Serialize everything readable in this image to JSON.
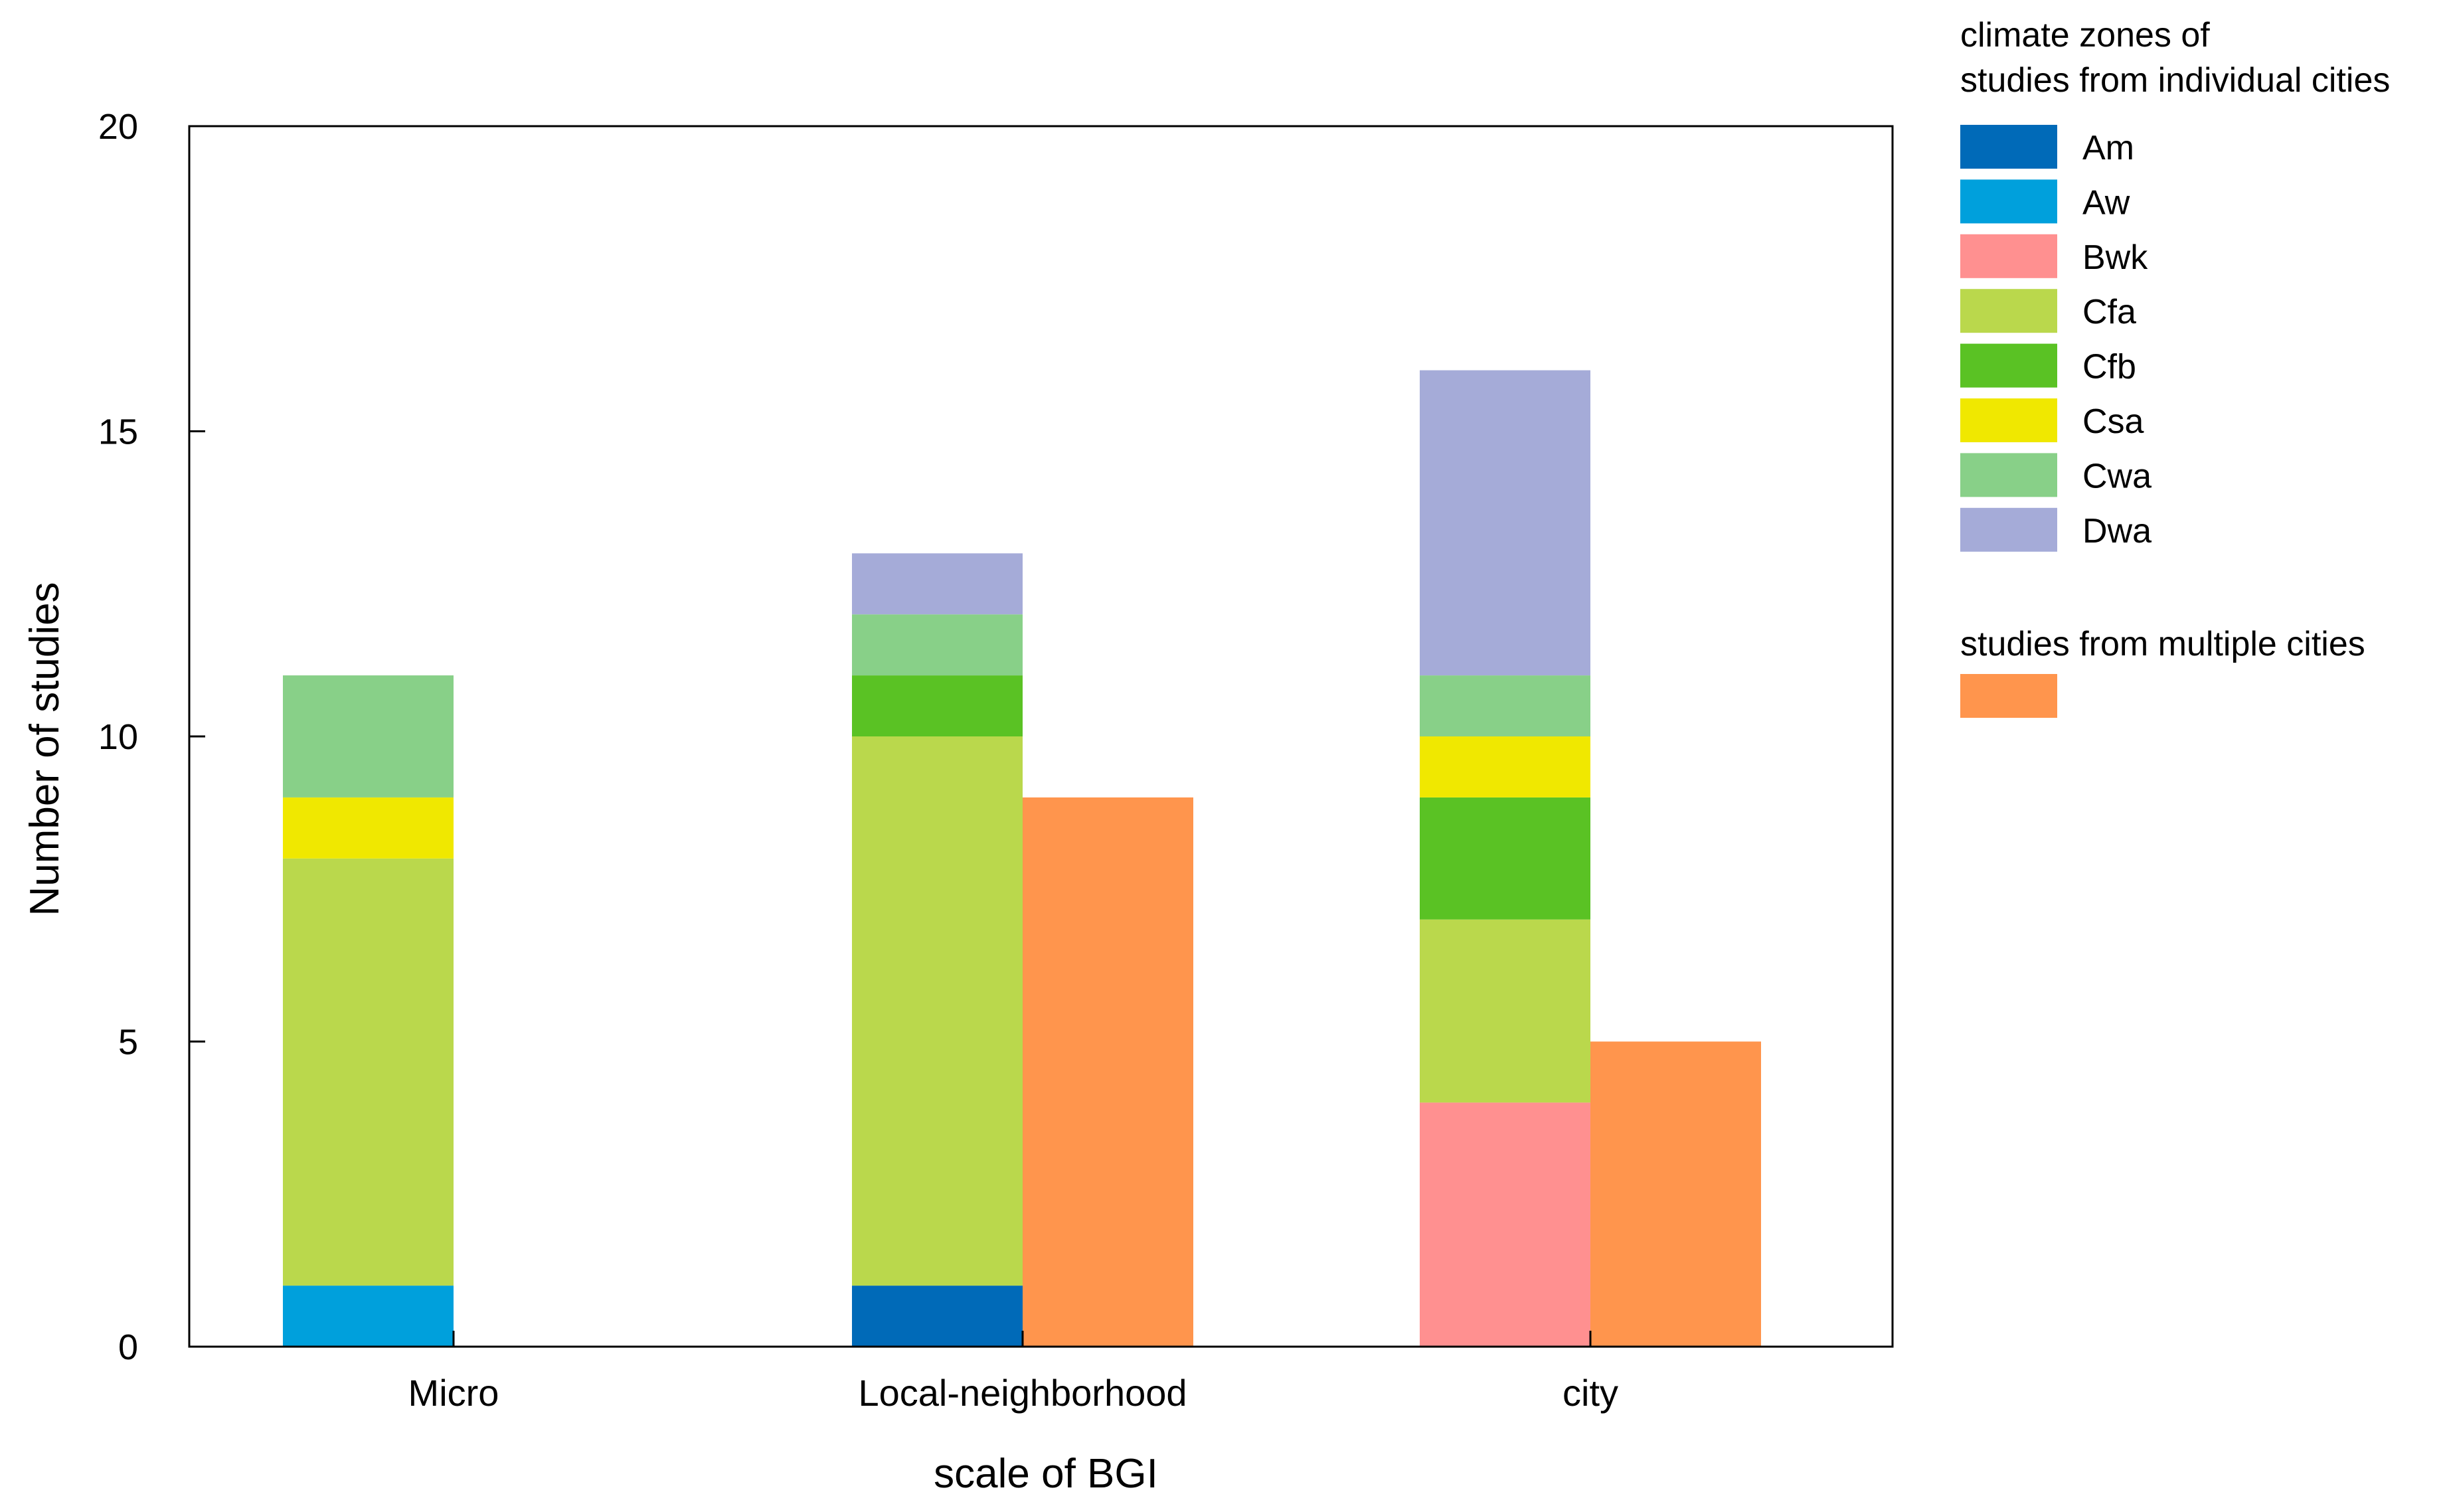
{
  "chart_data": {
    "type": "bar",
    "stacked": true,
    "categories": [
      "Micro",
      "Local-neighborhood",
      "city"
    ],
    "xlabel": "scale of BGI",
    "ylabel": "Number of studies",
    "ylim": [
      0,
      20
    ],
    "yticks": [
      0,
      5,
      10,
      15,
      20
    ],
    "grid": false,
    "legend_placement": "right",
    "legend_title": "climate zones of\nstudies from individual cities",
    "legend_title_lines": [
      "climate zones of",
      "studies from individual cities"
    ],
    "stacked_series": [
      {
        "name": "Am",
        "color": "#006ab8",
        "values": [
          0,
          1,
          0
        ]
      },
      {
        "name": "Aw",
        "color": "#00a0dc",
        "values": [
          1,
          0,
          0
        ]
      },
      {
        "name": "Bwk",
        "color": "#ff9090",
        "values": [
          0,
          0,
          4
        ]
      },
      {
        "name": "Cfa",
        "color": "#bad84c",
        "values": [
          7,
          9,
          3
        ]
      },
      {
        "name": "Cfb",
        "color": "#5ac224",
        "values": [
          0,
          1,
          2
        ]
      },
      {
        "name": "Csa",
        "color": "#f0e800",
        "values": [
          1,
          0,
          1
        ]
      },
      {
        "name": "Cwa",
        "color": "#88d088",
        "values": [
          2,
          1,
          1
        ]
      },
      {
        "name": "Dwa",
        "color": "#a5abd8",
        "values": [
          0,
          1,
          5
        ]
      }
    ],
    "multiple_cities": {
      "label": "studies from multiple cities",
      "color": "#ff954d",
      "values": [
        0,
        9,
        5
      ]
    }
  }
}
